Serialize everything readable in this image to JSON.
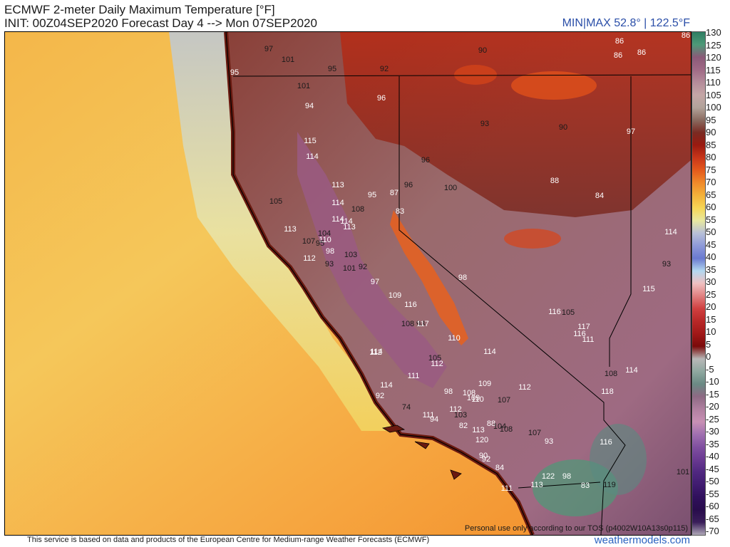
{
  "header": {
    "title": "ECMWF 2-meter Daily Maximum Temperature [°F]",
    "init": "INIT: 00Z04SEP2020 Forecast Day 4 --> Mon 07SEP2020",
    "minmax": "MIN|MAX 52.8° | 122.5°F"
  },
  "map": {
    "tos_note": "Personal use only according to our TOS (p4002W10A13s0p115)",
    "region": "California and Nevada",
    "labels": [
      {
        "v": "97",
        "c": "dark"
      },
      {
        "v": "101",
        "c": "dark"
      },
      {
        "v": "95",
        "c": "dark"
      },
      {
        "v": "92",
        "c": "dark"
      },
      {
        "v": "90",
        "c": "dark"
      },
      {
        "v": "86",
        "c": "light"
      },
      {
        "v": "86",
        "c": "light"
      },
      {
        "v": "86",
        "c": "light"
      },
      {
        "v": "86",
        "c": "light"
      },
      {
        "v": "95",
        "c": "light"
      },
      {
        "v": "101",
        "c": "dark"
      },
      {
        "v": "96",
        "c": "light"
      },
      {
        "v": "94",
        "c": "light"
      },
      {
        "v": "93",
        "c": "dark"
      },
      {
        "v": "90",
        "c": "dark"
      },
      {
        "v": "97",
        "c": "light"
      },
      {
        "v": "115",
        "c": "light"
      },
      {
        "v": "114",
        "c": "light"
      },
      {
        "v": "96",
        "c": "dark"
      },
      {
        "v": "113",
        "c": "light"
      },
      {
        "v": "95",
        "c": "light"
      },
      {
        "v": "87",
        "c": "light"
      },
      {
        "v": "96",
        "c": "dark"
      },
      {
        "v": "100",
        "c": "dark"
      },
      {
        "v": "88",
        "c": "light"
      },
      {
        "v": "84",
        "c": "light"
      },
      {
        "v": "105",
        "c": "dark"
      },
      {
        "v": "114",
        "c": "light"
      },
      {
        "v": "114",
        "c": "light"
      },
      {
        "v": "108",
        "c": "dark"
      },
      {
        "v": "83",
        "c": "light"
      },
      {
        "v": "114",
        "c": "light"
      },
      {
        "v": "113",
        "c": "light"
      },
      {
        "v": "113",
        "c": "light"
      },
      {
        "v": "104",
        "c": "dark"
      },
      {
        "v": "110",
        "c": "light"
      },
      {
        "v": "107",
        "c": "dark"
      },
      {
        "v": "98",
        "c": "light"
      },
      {
        "v": "95",
        "c": "dark"
      },
      {
        "v": "103",
        "c": "dark"
      },
      {
        "v": "112",
        "c": "light"
      },
      {
        "v": "93",
        "c": "dark"
      },
      {
        "v": "92",
        "c": "dark"
      },
      {
        "v": "101",
        "c": "dark"
      },
      {
        "v": "114",
        "c": "light"
      },
      {
        "v": "93",
        "c": "dark"
      },
      {
        "v": "98",
        "c": "light"
      },
      {
        "v": "97",
        "c": "light"
      },
      {
        "v": "115",
        "c": "light"
      },
      {
        "v": "109",
        "c": "light"
      },
      {
        "v": "116",
        "c": "light"
      },
      {
        "v": "116",
        "c": "light"
      },
      {
        "v": "105",
        "c": "dark"
      },
      {
        "v": "108",
        "c": "dark"
      },
      {
        "v": "93",
        "c": "dark"
      },
      {
        "v": "117",
        "c": "light"
      },
      {
        "v": "117",
        "c": "light"
      },
      {
        "v": "116",
        "c": "light"
      },
      {
        "v": "111",
        "c": "light"
      },
      {
        "v": "111",
        "c": "light"
      },
      {
        "v": "112",
        "c": "light"
      },
      {
        "v": "110",
        "c": "light"
      },
      {
        "v": "114",
        "c": "light"
      },
      {
        "v": "114",
        "c": "light"
      },
      {
        "v": "112",
        "c": "light"
      },
      {
        "v": "114",
        "c": "light"
      },
      {
        "v": "105",
        "c": "dark"
      },
      {
        "v": "108",
        "c": "dark"
      },
      {
        "v": "114",
        "c": "light"
      },
      {
        "v": "109",
        "c": "light"
      },
      {
        "v": "110",
        "c": "light"
      },
      {
        "v": "118",
        "c": "light"
      },
      {
        "v": "92",
        "c": "light"
      },
      {
        "v": "98",
        "c": "light"
      },
      {
        "v": "108",
        "c": "light"
      },
      {
        "v": "109",
        "c": "light"
      },
      {
        "v": "107",
        "c": "dark"
      },
      {
        "v": "112",
        "c": "light"
      },
      {
        "v": "74",
        "c": "dark"
      },
      {
        "v": "112",
        "c": "light"
      },
      {
        "v": "103",
        "c": "dark"
      },
      {
        "v": "111",
        "c": "light"
      },
      {
        "v": "94",
        "c": "light"
      },
      {
        "v": "82",
        "c": "light"
      },
      {
        "v": "88",
        "c": "light"
      },
      {
        "v": "104",
        "c": "dark"
      },
      {
        "v": "108",
        "c": "dark"
      },
      {
        "v": "107",
        "c": "dark"
      },
      {
        "v": "113",
        "c": "light"
      },
      {
        "v": "93",
        "c": "light"
      },
      {
        "v": "116",
        "c": "light"
      },
      {
        "v": "120",
        "c": "light"
      },
      {
        "v": "90",
        "c": "light"
      },
      {
        "v": "92",
        "c": "light"
      },
      {
        "v": "84",
        "c": "light"
      },
      {
        "v": "98",
        "c": "light"
      },
      {
        "v": "122",
        "c": "light"
      },
      {
        "v": "111",
        "c": "light"
      },
      {
        "v": "83",
        "c": "light"
      },
      {
        "v": "119",
        "c": "dark"
      },
      {
        "v": "113",
        "c": "light"
      },
      {
        "v": "101",
        "c": "dark"
      },
      {
        "v": "90",
        "c": "light"
      }
    ]
  },
  "colorbar": {
    "ticks": [
      "130",
      "125",
      "120",
      "115",
      "110",
      "105",
      "100",
      "95",
      "90",
      "85",
      "80",
      "75",
      "70",
      "65",
      "60",
      "55",
      "50",
      "45",
      "40",
      "35",
      "30",
      "25",
      "20",
      "15",
      "10",
      "5",
      "0",
      "-5",
      "-10",
      "-15",
      "-20",
      "-25",
      "-30",
      "-35",
      "-40",
      "-45",
      "-50",
      "-55",
      "-60",
      "-65",
      "-70"
    ],
    "colors": [
      "#2e7d62",
      "#4d9a78",
      "#8b5a78",
      "#a06a86",
      "#b48c9a",
      "#c4a6a6",
      "#b2a39a",
      "#8a6b60",
      "#7a2a22",
      "#9a1a10",
      "#c8361a",
      "#e45a1c",
      "#f08a2a",
      "#f4b23a",
      "#f6d656",
      "#e8e8a0",
      "#b8c0d8",
      "#8e9ad8",
      "#6a7ad0",
      "#b3d8f0",
      "#f0c0c0",
      "#e08080",
      "#d04040",
      "#b82828",
      "#a01818",
      "#7a0a0a",
      "#b8b8b8",
      "#8fa8a0",
      "#6a8a84",
      "#8e6a84",
      "#b080a0",
      "#c890b4",
      "#a070b0",
      "#8050a0",
      "#6a3a92",
      "#502880",
      "#401c70",
      "#30105c",
      "#280c4c",
      "#3a1e5a",
      "#b0a8b8"
    ],
    "unit": "°F"
  },
  "footer": {
    "credit": "This service is based on data and products of the European Centre for Medium-range Weather Forecasts (ECMWF)",
    "brand": "weathermodels.com"
  }
}
